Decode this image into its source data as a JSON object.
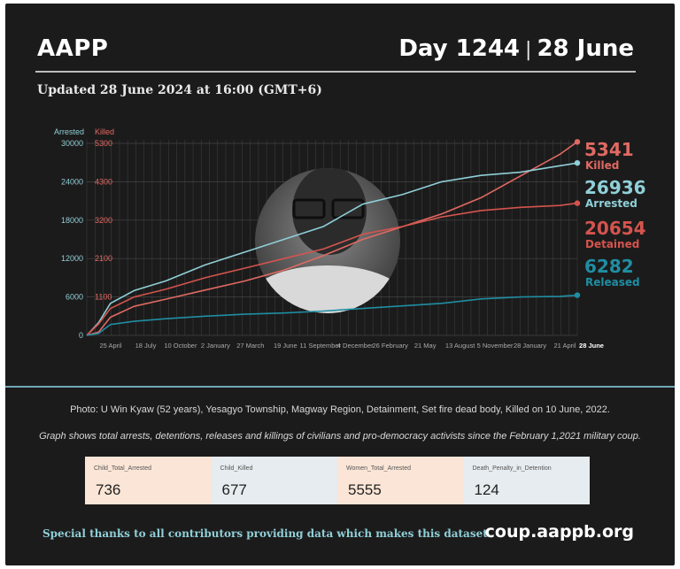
{
  "header": {
    "brand": "AAPP",
    "day_label": "Day 1244",
    "separator": "|",
    "date_label": "28 June",
    "updated": "Updated 28 June 2024 at 16:00 (GMT+6)"
  },
  "chart_data": {
    "type": "line",
    "axes_titles": {
      "left_outer": "Arrested",
      "left_inner": "Killed"
    },
    "y_arrested_ticks": [
      "30000",
      "24000",
      "18000",
      "12000",
      "6000",
      "0"
    ],
    "y_killed_ticks": [
      "5300",
      "4300",
      "3200",
      "2100",
      "1100"
    ],
    "ylim_arrested": [
      0,
      30000
    ],
    "x_ticks": [
      "25 April",
      "18 July",
      "10 October",
      "2 January",
      "27 March",
      "19 June",
      "11 September",
      "4 December",
      "26 February",
      "21 May",
      "13 August",
      "5 November",
      "28 January",
      "21 April",
      "28 June"
    ],
    "x_days": [
      0,
      1244
    ],
    "grid": true,
    "series": [
      {
        "name": "Killed",
        "axis": "killed",
        "final_value": "5341",
        "color": "#e06a63",
        "points": [
          [
            0,
            0
          ],
          [
            30,
            90
          ],
          [
            60,
            500
          ],
          [
            120,
            800
          ],
          [
            200,
            1000
          ],
          [
            300,
            1250
          ],
          [
            400,
            1500
          ],
          [
            500,
            1800
          ],
          [
            600,
            2200
          ],
          [
            700,
            2650
          ],
          [
            800,
            3000
          ],
          [
            900,
            3350
          ],
          [
            1000,
            3800
          ],
          [
            1100,
            4400
          ],
          [
            1200,
            5000
          ],
          [
            1244,
            5341
          ]
        ]
      },
      {
        "name": "Arrested",
        "axis": "arrested",
        "final_value": "26936",
        "color": "#8fd0d8",
        "points": [
          [
            0,
            0
          ],
          [
            30,
            2000
          ],
          [
            60,
            5000
          ],
          [
            120,
            7000
          ],
          [
            200,
            8500
          ],
          [
            300,
            11000
          ],
          [
            400,
            13000
          ],
          [
            500,
            15000
          ],
          [
            600,
            17000
          ],
          [
            700,
            20500
          ],
          [
            800,
            22000
          ],
          [
            900,
            24000
          ],
          [
            1000,
            25000
          ],
          [
            1100,
            25500
          ],
          [
            1200,
            26500
          ],
          [
            1244,
            26936
          ]
        ]
      },
      {
        "name": "Detained",
        "axis": "arrested",
        "final_value": "20654",
        "color": "#d4544e",
        "points": [
          [
            0,
            0
          ],
          [
            30,
            1800
          ],
          [
            60,
            4200
          ],
          [
            120,
            6000
          ],
          [
            200,
            7200
          ],
          [
            300,
            9000
          ],
          [
            400,
            10500
          ],
          [
            500,
            12000
          ],
          [
            600,
            13500
          ],
          [
            700,
            15800
          ],
          [
            800,
            17000
          ],
          [
            900,
            18500
          ],
          [
            1000,
            19500
          ],
          [
            1100,
            20000
          ],
          [
            1200,
            20300
          ],
          [
            1244,
            20654
          ]
        ]
      },
      {
        "name": "Released",
        "axis": "arrested",
        "final_value": "6282",
        "color": "#1f8ea3",
        "points": [
          [
            0,
            0
          ],
          [
            30,
            300
          ],
          [
            60,
            1700
          ],
          [
            120,
            2200
          ],
          [
            200,
            2600
          ],
          [
            300,
            3000
          ],
          [
            400,
            3300
          ],
          [
            500,
            3500
          ],
          [
            600,
            3800
          ],
          [
            700,
            4200
          ],
          [
            800,
            4600
          ],
          [
            900,
            5000
          ],
          [
            1000,
            5700
          ],
          [
            1100,
            6000
          ],
          [
            1200,
            6100
          ],
          [
            1244,
            6282
          ]
        ]
      }
    ]
  },
  "photo_caption": "Photo: U Win Kyaw (52 years), Yesagyo Township, Magway Region, Detainment, Set fire dead body, Killed on 10 June, 2022.",
  "graph_note": "Graph shows total arrests, detentions, releases and killings of civilians and pro-democracy activists since the February 1,2021 military coup.",
  "stats": [
    {
      "label": "Child_Total_Arrested",
      "value": "736",
      "color": "#fbe5d6"
    },
    {
      "label": "Child_Killed",
      "value": "677",
      "color": "#e6ecef"
    },
    {
      "label": "Women_Total_Arrested",
      "value": "5555",
      "color": "#fbe5d6"
    },
    {
      "label": "Death_Penalty_in_Detention",
      "value": "124",
      "color": "#e6ecef"
    }
  ],
  "footer": {
    "thanks": "Special thanks to all contributors providing data which makes this dataset.",
    "site": "coup.aappb.org"
  },
  "colors": {
    "background": "#1c1b1b",
    "arrested": "#8fd0d8",
    "killed": "#e06a63",
    "released": "#1f8ea3"
  }
}
